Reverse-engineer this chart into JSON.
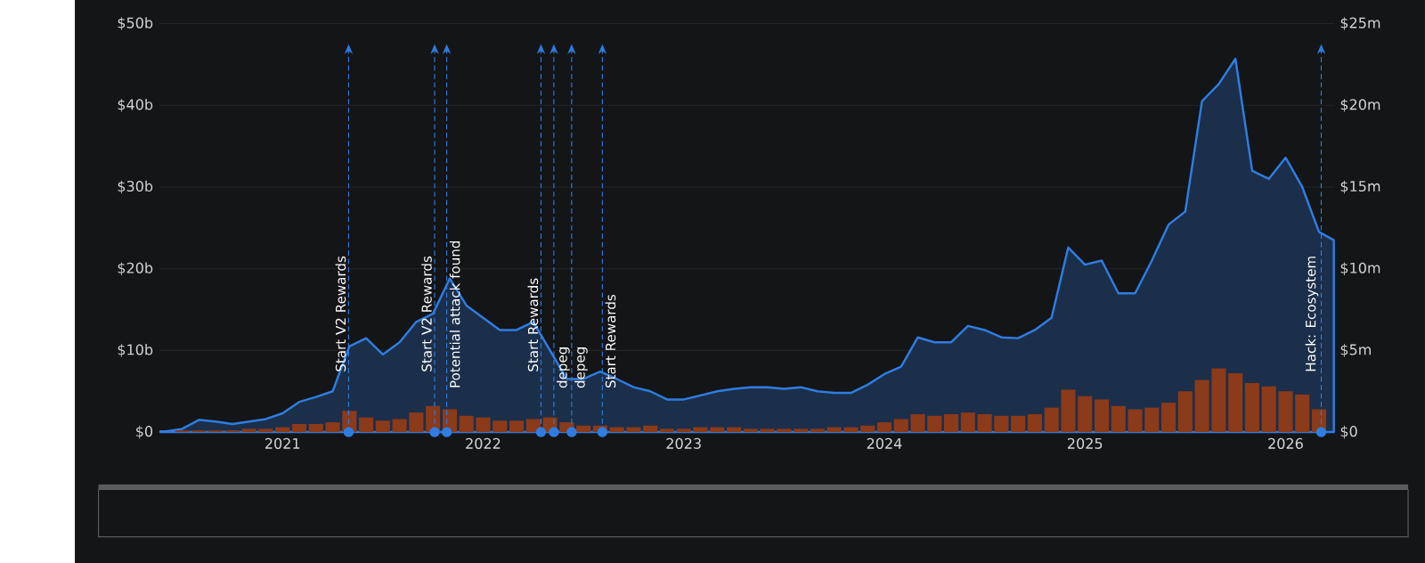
{
  "chart_data": {
    "type": "area",
    "x": [
      "2020-05-22",
      "2020-06",
      "2020-07",
      "2020-08",
      "2020-09",
      "2020-10",
      "2020-11",
      "2020-12",
      "2021-01",
      "2021-02",
      "2021-03",
      "2021-04",
      "2021-05",
      "2021-06",
      "2021-07",
      "2021-08",
      "2021-09",
      "2021-10",
      "2021-11",
      "2021-12",
      "2022-01",
      "2022-02",
      "2022-03",
      "2022-04",
      "2022-05",
      "2022-06",
      "2022-07",
      "2022-08",
      "2022-09",
      "2022-10",
      "2022-11",
      "2022-12",
      "2023-01",
      "2023-02",
      "2023-03",
      "2023-04",
      "2023-05",
      "2023-06",
      "2023-07",
      "2023-08",
      "2023-09",
      "2023-10",
      "2023-11",
      "2023-12",
      "2024-01",
      "2024-02",
      "2024-03",
      "2024-04",
      "2024-05",
      "2024-06",
      "2024-07",
      "2024-08",
      "2024-09",
      "2024-10",
      "2024-11",
      "2024-12",
      "2025-01",
      "2025-02",
      "2025-03",
      "2025-04",
      "2025-05",
      "2025-06",
      "2025-07",
      "2025-08",
      "2025-09",
      "2025-10",
      "2025-11",
      "2025-12",
      "2026-01",
      "2026-02",
      "2026-03",
      "2026-03-28"
    ],
    "series": [
      {
        "color": "#2f7de1",
        "values": [
          0.1,
          0.1,
          0.4,
          1.5,
          1.3,
          1.0,
          1.3,
          1.6,
          2.3,
          3.7,
          4.3,
          5.0,
          10.5,
          11.5,
          9.5,
          11,
          13.5,
          14.5,
          18.8,
          15.5,
          14,
          12.5,
          12.5,
          13.5,
          10,
          6.5,
          6.5,
          7.4,
          6.5,
          5.5,
          5,
          4,
          4,
          4.5,
          5,
          5.3,
          5.5,
          5.5,
          5.3,
          5.5,
          5,
          4.8,
          4.8,
          5.8,
          7.1,
          8,
          11.6,
          11,
          11,
          13,
          12.5,
          11.6,
          11.5,
          12.5,
          14,
          22.6,
          20.5,
          21,
          17,
          17,
          21,
          25.4,
          27,
          40.5,
          42.6,
          45.7,
          32,
          31,
          33.6,
          30,
          24.5,
          23.5
        ]
      },
      {
        "type": "bar",
        "axis": "y2",
        "color": "#8b3a1a",
        "x": [
          "2020-06",
          "2020-07",
          "2020-08",
          "2020-09",
          "2020-10",
          "2020-11",
          "2020-12",
          "2021-01",
          "2021-02",
          "2021-03",
          "2021-04",
          "2021-05",
          "2021-06",
          "2021-07",
          "2021-08",
          "2021-09",
          "2021-10",
          "2021-11",
          "2021-12",
          "2022-01",
          "2022-02",
          "2022-03",
          "2022-04",
          "2022-05",
          "2022-06",
          "2022-07",
          "2022-08",
          "2022-09",
          "2022-10",
          "2022-11",
          "2022-12",
          "2023-01",
          "2023-02",
          "2023-03",
          "2023-04",
          "2023-05",
          "2023-06",
          "2023-07",
          "2023-08",
          "2023-09",
          "2023-10",
          "2023-11",
          "2023-12",
          "2024-01",
          "2024-02",
          "2024-03",
          "2024-04",
          "2024-05",
          "2024-06",
          "2024-07",
          "2024-08",
          "2024-09",
          "2024-10",
          "2024-11",
          "2024-12",
          "2025-01",
          "2025-02",
          "2025-03",
          "2025-04",
          "2025-05",
          "2025-06",
          "2025-07",
          "2025-08",
          "2025-09",
          "2025-10",
          "2025-11",
          "2025-12",
          "2026-01",
          "2026-02",
          "2026-03"
        ],
        "values": [
          0,
          0.1,
          0.1,
          0.1,
          0.1,
          0.2,
          0.2,
          0.3,
          0.5,
          0.5,
          0.6,
          1.3,
          0.9,
          0.7,
          0.8,
          1.2,
          1.6,
          1.4,
          1.0,
          0.9,
          0.7,
          0.7,
          0.8,
          0.9,
          0.6,
          0.4,
          0.4,
          0.3,
          0.3,
          0.4,
          0.2,
          0.2,
          0.3,
          0.3,
          0.3,
          0.2,
          0.2,
          0.2,
          0.2,
          0.2,
          0.3,
          0.3,
          0.4,
          0.6,
          0.8,
          1.1,
          1.0,
          1.1,
          1.2,
          1.1,
          1.0,
          1.0,
          1.1,
          1.5,
          2.6,
          2.2,
          2.0,
          1.6,
          1.4,
          1.5,
          1.8,
          2.5,
          3.2,
          3.9,
          3.6,
          3.0,
          2.8,
          2.5,
          2.3,
          1.4
        ]
      }
    ],
    "xlim": [
      "2020-05-20",
      "2026-03-28"
    ],
    "xticks": [
      "2021",
      "2022",
      "2023",
      "2024",
      "2025",
      "2026"
    ],
    "ylim": [
      0,
      50
    ],
    "yticks": [
      {
        "value": 0,
        "label": "$0"
      },
      {
        "value": 10,
        "label": "$10b"
      },
      {
        "value": 20,
        "label": "$20b"
      },
      {
        "value": 30,
        "label": "$30b"
      },
      {
        "value": 40,
        "label": "$40b"
      },
      {
        "value": 50,
        "label": "$50b"
      }
    ],
    "y2lim": [
      0,
      25
    ],
    "y2ticks": [
      {
        "value": 0,
        "label": "$0"
      },
      {
        "value": 5,
        "label": "$5m"
      },
      {
        "value": 10,
        "label": "$10m"
      },
      {
        "value": 15,
        "label": "$15m"
      },
      {
        "value": 20,
        "label": "$20m"
      },
      {
        "value": 25,
        "label": "$25m"
      }
    ],
    "grid": "y",
    "ref_lines": [
      {
        "axis": "x",
        "value": "2021-04-30",
        "label": "Start V2 Rewards",
        "color": "#2f7de1",
        "line_style": "dashed"
      },
      {
        "axis": "x",
        "value": "2021-10-04",
        "label": "Start V2 Rewards",
        "color": "#2f7de1",
        "line_style": "dashed"
      },
      {
        "axis": "x",
        "value": "2021-10-26",
        "label": "Potential attack found",
        "color": "#2f7de1",
        "line_style": "dashed"
      },
      {
        "axis": "x",
        "value": "2022-04-15",
        "label": "Start Rewards",
        "color": "#2f7de1",
        "line_style": "dashed"
      },
      {
        "axis": "x",
        "value": "2022-05-08",
        "label": "depeg",
        "color": "#2f7de1",
        "line_style": "dashed"
      },
      {
        "axis": "x",
        "value": "2022-06-10",
        "label": "depeg",
        "color": "#2f7de1",
        "line_style": "dashed"
      },
      {
        "axis": "x",
        "value": "2022-08-05",
        "label": "Start Rewards",
        "color": "#2f7de1",
        "line_style": "dashed"
      },
      {
        "axis": "x",
        "value": "2026-03-05",
        "label": "Hack: Ecosystem",
        "color": "#2f7de1",
        "line_style": "dashed"
      }
    ]
  }
}
